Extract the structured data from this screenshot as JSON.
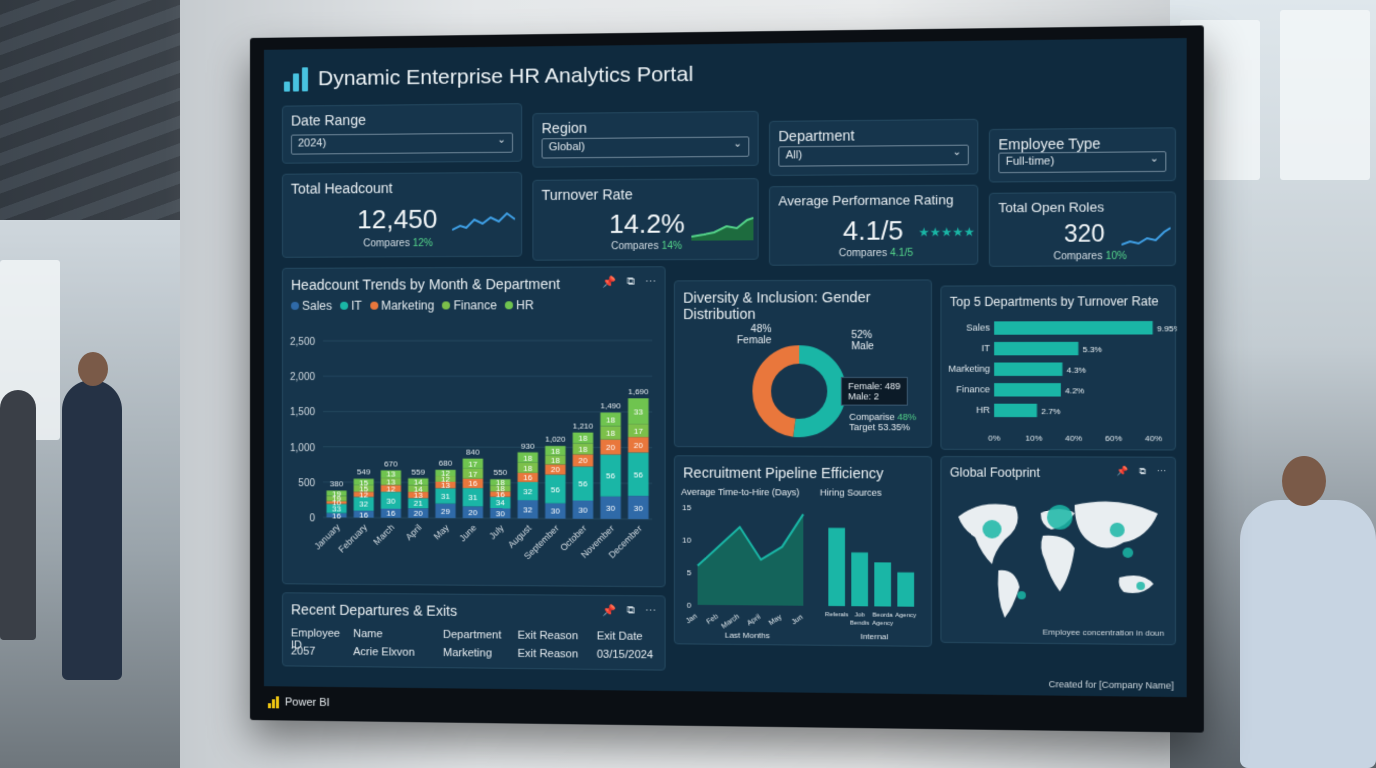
{
  "app": {
    "title": "Dynamic Enterprise HR Analytics Portal",
    "brand": "Power BI",
    "footer": "Created for [Company Name]"
  },
  "slicers": [
    {
      "label": "Date Range",
      "value": "2024)"
    },
    {
      "label": "Region",
      "value": "Global)"
    },
    {
      "label": "Department",
      "value": "All)"
    },
    {
      "label": "Employee Type",
      "value": "Full-time)"
    }
  ],
  "kpis": [
    {
      "label": "Total Headcount",
      "value": "12,450",
      "compare_label": "Compares",
      "compare_value": "12%"
    },
    {
      "label": "Turnover Rate",
      "value": "14.2%",
      "compare_label": "Compares",
      "compare_value": "14%"
    },
    {
      "label": "Average Performance Rating",
      "value": "4.1/5",
      "stars": "★★★★★",
      "compare_label": "Compares",
      "compare_value": "4.1/5"
    },
    {
      "label": "Total Open Roles",
      "value": "320",
      "compare_label": "Compares",
      "compare_value": "10%"
    }
  ],
  "headcount_panel": {
    "title": "Headcount Trends by Month & Department",
    "icons": [
      "pin-icon",
      "expand-icon",
      "more-icon"
    ]
  },
  "diversity_panel": {
    "title": "Diversity & Inclusion: Gender Distribution",
    "female_pct": "48%",
    "female_label": "Female",
    "male_pct": "52%",
    "male_label": "Male",
    "tooltip_female": "Female: 489",
    "tooltip_male": "Male: 2",
    "compare_label": "Comparise",
    "compare_value": "48%",
    "target_label": "Target",
    "target_value": "53.35%"
  },
  "turnover_panel": {
    "title": "Top 5 Departments by Turnover Rate"
  },
  "pipeline_panel": {
    "title": "Recruitment Pipeline Efficiency",
    "left_title": "Average Time-to-Hire (Days)",
    "left_xlabel": "Last Months",
    "right_title": "Hiring Sources",
    "right_xlabel": "Internal"
  },
  "footprint_panel": {
    "title": "Global Footprint",
    "note": "Employee concentration in doun"
  },
  "departures_panel": {
    "title": "Recent Departures & Exits",
    "columns": [
      "Employee ID",
      "Name",
      "Department",
      "Exit Reason",
      "Exit Date"
    ],
    "rows": [
      [
        "2057",
        "Acrie Elxvon",
        "Marketing",
        "Exit Reason",
        "03/15/2024"
      ]
    ]
  },
  "colors": {
    "sales": "#2f6aa8",
    "it": "#1ab6a6",
    "marketing": "#e9773c",
    "finance": "#7cc04a",
    "hr": "#6fc44f",
    "teal": "#1ab6a6"
  },
  "chart_data": [
    {
      "type": "bar",
      "title": "Headcount Trends by Month & Department",
      "categories": [
        "January",
        "February",
        "March",
        "April",
        "May",
        "June",
        "July",
        "August",
        "September",
        "October",
        "November",
        "December"
      ],
      "series": [
        {
          "name": "Sales",
          "values": [
            16,
            16,
            16,
            20,
            29,
            20,
            30,
            32,
            30,
            30,
            30,
            30
          ]
        },
        {
          "name": "IT",
          "values": [
            33,
            32,
            30,
            21,
            31,
            31,
            34,
            32,
            56,
            56,
            56,
            56
          ]
        },
        {
          "name": "Marketing",
          "values": [
            10,
            12,
            12,
            13,
            13,
            16,
            16,
            16,
            20,
            20,
            20,
            20
          ]
        },
        {
          "name": "Finance",
          "values": [
            19,
            15,
            13,
            14,
            12,
            17,
            18,
            18,
            18,
            18,
            18,
            17
          ]
        },
        {
          "name": "HR",
          "values": [
            19,
            15,
            13,
            14,
            12,
            17,
            18,
            18,
            18,
            18,
            18,
            33
          ]
        }
      ],
      "totals": [
        380,
        549,
        670,
        559,
        680,
        840,
        550,
        930,
        1020,
        1210,
        1490,
        1690
      ],
      "ylim": [
        0,
        2500
      ],
      "yticks": [
        "2,500",
        "2,000",
        "1,500",
        "1,000",
        "500",
        "0"
      ],
      "legend": "top-left"
    },
    {
      "type": "pie",
      "title": "Diversity & Inclusion: Gender Distribution",
      "labels": [
        "Female",
        "Male"
      ],
      "values": [
        48,
        52
      ]
    },
    {
      "type": "bar",
      "title": "Top 5 Departments by Turnover Rate",
      "categories": [
        "Sales",
        "IT",
        "Marketing",
        "Finance",
        "HR"
      ],
      "values": [
        9.95,
        5.3,
        4.3,
        4.2,
        2.7
      ],
      "value_labels": [
        "9.95%",
        "5.3%",
        "4.3%",
        "4.2%",
        "2.7%"
      ],
      "xticks": [
        "0%",
        "10%",
        "40%",
        "60%",
        "40%"
      ]
    },
    {
      "type": "area",
      "title": "Average Time-to-Hire (Days)",
      "categories": [
        "Jan",
        "Feb",
        "March",
        "April",
        "May",
        "Jun"
      ],
      "values": [
        6,
        9,
        12,
        7,
        9,
        14
      ],
      "ylim": [
        0,
        15
      ],
      "yticks": [
        "15",
        "10",
        "5",
        "0"
      ]
    },
    {
      "type": "bar",
      "title": "Hiring Sources",
      "categories": [
        "Referals",
        "Job Bendis",
        "Beorda Agency",
        "Agency"
      ],
      "values": [
        16,
        11,
        9,
        7
      ]
    }
  ]
}
